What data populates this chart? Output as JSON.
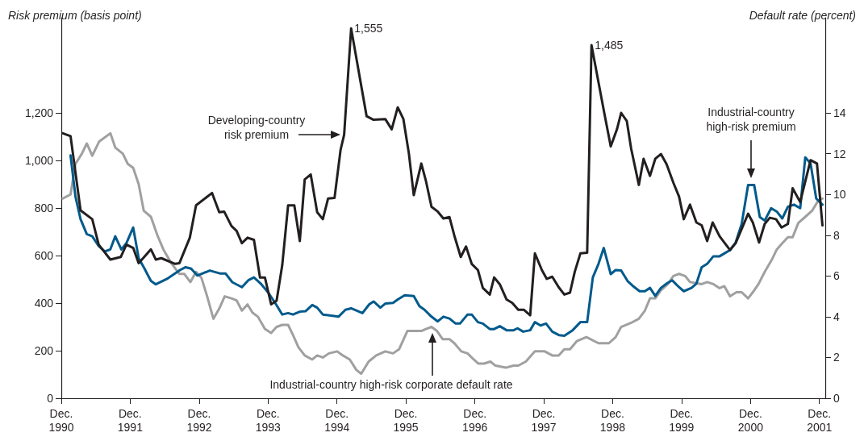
{
  "chart_data": {
    "type": "line",
    "ylabel": "Risk premium (basis point)",
    "y2label": "Default rate (percent)",
    "xlim": [
      "1990-12-01",
      "2002-01-01"
    ],
    "xticks": [
      {
        "value": "1990-12",
        "label": "Dec.\n1990"
      },
      {
        "value": "1991-12",
        "label": "Dec.\n1991"
      },
      {
        "value": "1992-12",
        "label": "Dec.\n1992"
      },
      {
        "value": "1993-12",
        "label": "Dec.\n1993"
      },
      {
        "value": "1994-12",
        "label": "Dec.\n1994"
      },
      {
        "value": "1995-12",
        "label": "Dec.\n1995"
      },
      {
        "value": "1996-12",
        "label": "Dec.\n1996"
      },
      {
        "value": "1997-12",
        "label": "Dec.\n1997"
      },
      {
        "value": "1998-12",
        "label": "Dec.\n1998"
      },
      {
        "value": "1999-12",
        "label": "Dec.\n1999"
      },
      {
        "value": "2000-12",
        "label": "Dec.\n2000"
      },
      {
        "value": "2001-12",
        "label": "Dec.\n2001"
      }
    ],
    "ylim": [
      0,
      1600
    ],
    "yticks": [
      0,
      200,
      400,
      600,
      800,
      {
        "value": 1000,
        "label": "1,000"
      },
      {
        "value": 1200,
        "label": "1,200"
      }
    ],
    "y2lim": [
      0,
      18.67
    ],
    "y2ticks": [
      0,
      2,
      4,
      6,
      8,
      10,
      12,
      14
    ],
    "grid": false,
    "marker": "none",
    "annotations": [
      {
        "text": "1,555",
        "x": "1995-02-14",
        "y": 1555
      },
      {
        "text": "1,485",
        "x": "1998-08-11",
        "y": 1485
      }
    ],
    "series": [
      {
        "name": "Developing-country risk premium",
        "color": "#231f20",
        "x": [
          "1990-12-09",
          "1991-01-19",
          "1991-03-13",
          "1991-05-14",
          "1991-06-17",
          "1991-08-18",
          "1991-10-12",
          "1991-11-11",
          "1991-12-17",
          "1992-01-15",
          "1992-03-20",
          "1992-04-15",
          "1992-05-14",
          "1992-07-26",
          "1992-08-18",
          "1992-10-12",
          "1992-11-14",
          "1993-02-07",
          "1993-03-17",
          "1993-04-12",
          "1993-05-21",
          "1993-06-17",
          "1993-07-15",
          "1993-08-14",
          "1993-09-17",
          "1993-10-19",
          "1993-11-14",
          "1993-12-17",
          "1994-01-15",
          "1994-02-14",
          "1994-03-17",
          "1994-04-19",
          "1994-05-18",
          "1994-06-13",
          "1994-07-15",
          "1994-08-18",
          "1994-09-17",
          "1994-10-15",
          "1994-11-18",
          "1994-12-20",
          "1995-01-08",
          "1995-02-14",
          "1995-05-07",
          "1995-06-13",
          "1995-08-14",
          "1995-09-17",
          "1995-10-19",
          "1995-11-18",
          "1995-12-17",
          "1996-01-12",
          "1996-02-21",
          "1996-03-17",
          "1996-04-15",
          "1996-05-18",
          "1996-06-17",
          "1996-07-19",
          "1996-08-14",
          "1996-09-17",
          "1996-10-15",
          "1996-11-14",
          "1996-12-17",
          "1997-01-12",
          "1997-02-18",
          "1997-03-13",
          "1997-04-12",
          "1997-05-18",
          "1997-06-17",
          "1997-07-19",
          "1997-08-18",
          "1997-09-20",
          "1997-10-15",
          "1997-11-21",
          "1997-12-17",
          "1998-01-15",
          "1998-02-18",
          "1998-03-20",
          "1998-04-19",
          "1998-05-14",
          "1998-06-13",
          "1998-07-19",
          "1998-08-11",
          "1998-10-19",
          "1998-11-21",
          "1998-12-24",
          "1999-01-15",
          "1999-02-14",
          "1999-03-09",
          "1999-04-19",
          "1999-05-14",
          "1999-06-17",
          "1999-07-15",
          "1999-08-14",
          "1999-09-13",
          "1999-10-19",
          "1999-11-18",
          "1999-12-13",
          "2000-01-15",
          "2000-02-18",
          "2000-03-17",
          "2000-04-15",
          "2000-05-14",
          "2000-06-20",
          "2000-08-14",
          "2000-09-13",
          "2000-11-18",
          "2000-12-13",
          "2001-01-15",
          "2001-02-14",
          "2001-03-13",
          "2001-04-15",
          "2001-05-14",
          "2001-06-17",
          "2001-07-12",
          "2001-08-21",
          "2001-10-15",
          "2001-11-18",
          "2001-12-17"
        ],
        "values": [
          1114,
          1102,
          790,
          753,
          646,
          583,
          594,
          646,
          632,
          568,
          626,
          583,
          589,
          565,
          568,
          675,
          811,
          863,
          782,
          785,
          724,
          704,
          652,
          675,
          666,
          508,
          508,
          395,
          410,
          560,
          811,
          811,
          661,
          920,
          941,
          782,
          753,
          840,
          842,
          1044,
          1108,
          1555,
          1186,
          1171,
          1174,
          1131,
          1223,
          1174,
          1030,
          854,
          987,
          912,
          805,
          785,
          756,
          762,
          684,
          594,
          638,
          565,
          539,
          464,
          436,
          508,
          479,
          415,
          401,
          372,
          372,
          349,
          609,
          539,
          502,
          511,
          467,
          436,
          444,
          531,
          609,
          612,
          1485,
          1194,
          1059,
          1131,
          1200,
          1166,
          1050,
          897,
          1007,
          935,
          1007,
          1027,
          984,
          906,
          848,
          753,
          814,
          739,
          727,
          661,
          739,
          681,
          623,
          652,
          776,
          739,
          655,
          733,
          759,
          753,
          718,
          733,
          883,
          825,
          1001,
          987,
          727
        ]
      },
      {
        "name": "Industrial-country high-risk premium",
        "color": "#005a8c",
        "x": [
          "1991-01-19",
          "1991-02-14",
          "1991-03-13",
          "1991-04-15",
          "1991-05-14",
          "1991-06-17",
          "1991-07-19",
          "1991-08-18",
          "1991-09-13",
          "1991-10-15",
          "1991-11-11",
          "1991-12-17",
          "1992-01-15",
          "1992-02-11",
          "1992-03-20",
          "1992-04-15",
          "1992-06-13",
          "1992-08-21",
          "1992-09-20",
          "1992-10-19",
          "1992-11-21",
          "1993-01-26",
          "1993-03-20",
          "1993-04-19",
          "1993-05-25",
          "1993-07-15",
          "1993-08-18",
          "1993-09-17",
          "1993-10-23",
          "1993-12-02",
          "1994-01-12",
          "1994-02-14",
          "1994-03-17",
          "1994-04-12",
          "1994-05-18",
          "1994-06-17",
          "1994-07-23",
          "1994-08-18",
          "1994-09-17",
          "1994-10-15",
          "1994-12-09",
          "1995-01-15",
          "1995-02-14",
          "1995-04-15",
          "1995-05-21",
          "1995-06-13",
          "1995-07-19",
          "1995-08-14",
          "1995-09-24",
          "1995-10-19",
          "1995-11-25",
          "1996-01-12",
          "1996-02-11",
          "1996-03-09",
          "1996-04-15",
          "1996-05-18",
          "1996-06-17",
          "1996-07-19",
          "1996-08-21",
          "1996-09-13",
          "1996-10-23",
          "1996-11-14",
          "1996-12-17",
          "1997-01-12",
          "1997-02-18",
          "1997-03-13",
          "1997-04-12",
          "1997-05-18",
          "1997-06-24",
          "1997-07-15",
          "1997-08-14",
          "1997-09-20",
          "1997-10-15",
          "1997-11-14",
          "1997-12-13",
          "1998-01-15",
          "1998-02-21",
          "1998-03-20",
          "1998-05-03",
          "1998-06-13",
          "1998-07-19",
          "1998-08-18",
          "1998-09-17",
          "1998-10-15",
          "1998-11-21",
          "1998-12-17",
          "1999-01-15",
          "1999-02-18",
          "1999-03-17",
          "1999-04-23",
          "1999-05-21",
          "1999-06-17",
          "1999-07-15",
          "1999-08-14",
          "1999-09-13",
          "1999-10-12",
          "1999-11-18",
          "1999-12-13",
          "2000-01-23",
          "2000-02-18",
          "2000-03-17",
          "2000-04-15",
          "2000-05-18",
          "2000-06-20",
          "2000-07-15",
          "2000-08-14",
          "2000-09-13",
          "2000-10-15",
          "2000-11-18",
          "2000-12-20",
          "2001-01-19",
          "2001-02-14",
          "2001-03-20",
          "2001-04-19",
          "2001-05-18",
          "2001-06-17",
          "2001-07-19",
          "2001-08-21",
          "2001-09-17",
          "2001-10-15",
          "2001-11-14",
          "2001-12-17"
        ],
        "values": [
          1021,
          848,
          753,
          690,
          681,
          640,
          617,
          626,
          681,
          626,
          652,
          718,
          589,
          551,
          493,
          479,
          502,
          539,
          551,
          545,
          516,
          537,
          525,
          525,
          488,
          467,
          496,
          508,
          482,
          444,
          395,
          352,
          358,
          352,
          364,
          366,
          392,
          381,
          352,
          349,
          343,
          372,
          378,
          358,
          395,
          407,
          381,
          398,
          401,
          415,
          433,
          430,
          387,
          372,
          343,
          323,
          343,
          335,
          314,
          314,
          352,
          352,
          320,
          314,
          291,
          291,
          303,
          286,
          286,
          294,
          280,
          286,
          320,
          306,
          314,
          280,
          265,
          263,
          286,
          320,
          320,
          508,
          565,
          632,
          522,
          539,
          537,
          493,
          473,
          450,
          450,
          464,
          430,
          464,
          482,
          496,
          467,
          450,
          464,
          482,
          551,
          565,
          597,
          597,
          609,
          623,
          655,
          733,
          897,
          897,
          762,
          747,
          799,
          785,
          756,
          805,
          814,
          799,
          1013,
          987,
          840,
          814
        ]
      },
      {
        "name": "Industrial-country high-risk corporate default rate",
        "color": "#a0a0a0",
        "axis": "y2",
        "x": [
          "1990-12-09",
          "1991-01-19",
          "1991-02-14",
          "1991-03-20",
          "1991-04-15",
          "1991-05-14",
          "1991-06-20",
          "1991-08-18",
          "1991-09-13",
          "1991-10-23",
          "1991-11-18",
          "1991-12-17",
          "1992-01-15",
          "1992-02-11",
          "1992-03-20",
          "1992-04-23",
          "1992-05-25",
          "1992-07-08",
          "1992-08-18",
          "1992-09-13",
          "1992-10-15",
          "1992-11-14",
          "1992-12-13",
          "1993-01-12",
          "1993-02-14",
          "1993-03-17",
          "1993-04-15",
          "1993-05-21",
          "1993-06-17",
          "1993-07-15",
          "1993-08-14",
          "1993-09-09",
          "1993-10-08",
          "1993-11-14",
          "1993-12-17",
          "1994-01-15",
          "1994-02-14",
          "1994-03-17",
          "1994-04-12",
          "1994-05-11",
          "1994-06-13",
          "1994-07-23",
          "1994-08-18",
          "1994-09-17",
          "1994-10-19",
          "1994-12-02",
          "1995-01-01",
          "1995-02-07",
          "1995-03-13",
          "1995-04-08",
          "1995-05-18",
          "1995-06-27",
          "1995-08-14",
          "1995-09-24",
          "1995-10-26",
          "1995-12-09",
          "1996-01-12",
          "1996-02-21",
          "1996-03-17",
          "1996-04-15",
          "1996-05-14",
          "1996-06-13",
          "1996-07-19",
          "1996-08-14",
          "1996-09-20",
          "1996-10-23",
          "1996-11-25",
          "1996-12-20",
          "1997-01-19",
          "1997-02-21",
          "1997-03-20",
          "1997-05-14",
          "1997-06-24",
          "1997-07-19",
          "1997-08-28",
          "1997-10-15",
          "1997-12-06",
          "1998-01-15",
          "1998-02-18",
          "1998-03-20",
          "1998-04-19",
          "1998-05-25",
          "1998-07-15",
          "1998-09-17",
          "1998-11-11",
          "1998-12-17",
          "1999-01-15",
          "1999-03-09",
          "1999-04-19",
          "1999-05-21",
          "1999-06-17",
          "1999-07-15",
          "1999-08-14",
          "1999-09-20",
          "1999-10-19",
          "1999-11-18",
          "1999-12-20",
          "2000-01-15",
          "2000-03-17",
          "2000-04-15",
          "2000-05-18",
          "2000-06-20",
          "2000-07-15",
          "2000-08-14",
          "2000-09-17",
          "2000-10-15",
          "2000-11-18",
          "2000-12-13",
          "2001-01-12",
          "2001-02-14",
          "2001-03-24",
          "2001-04-19",
          "2001-05-18",
          "2001-06-17",
          "2001-07-12",
          "2001-08-11",
          "2001-09-17",
          "2001-10-23",
          "2001-11-25",
          "2001-12-17"
        ],
        "values": [
          9.8,
          10.0,
          11.5,
          12.0,
          12.5,
          11.9,
          12.6,
          13.0,
          12.3,
          12.0,
          11.5,
          11.3,
          10.5,
          9.2,
          8.9,
          8.0,
          7.3,
          6.6,
          6.1,
          6.1,
          5.7,
          6.2,
          5.9,
          5.0,
          3.9,
          4.4,
          5.0,
          4.9,
          4.8,
          4.3,
          4.6,
          4.2,
          4.0,
          3.4,
          3.2,
          3.5,
          3.6,
          3.6,
          3.1,
          2.5,
          2.1,
          1.9,
          2.1,
          2.0,
          2.2,
          2.3,
          2.1,
          1.9,
          1.4,
          1.2,
          1.8,
          2.1,
          2.3,
          2.2,
          2.4,
          3.3,
          3.3,
          3.3,
          3.4,
          3.5,
          3.3,
          2.9,
          2.9,
          2.7,
          2.3,
          2.2,
          1.9,
          1.7,
          1.7,
          1.8,
          1.6,
          1.5,
          1.6,
          1.6,
          1.8,
          2.3,
          2.3,
          2.1,
          2.1,
          2.4,
          2.4,
          2.8,
          3.0,
          2.7,
          2.7,
          3.0,
          3.5,
          3.7,
          3.9,
          4.3,
          4.9,
          4.9,
          5.3,
          5.6,
          6.0,
          6.1,
          6.0,
          5.7,
          5.6,
          5.7,
          5.6,
          5.4,
          5.5,
          5.0,
          5.2,
          5.2,
          4.9,
          5.2,
          5.6,
          6.2,
          6.8,
          7.3,
          7.6,
          7.9,
          7.9,
          8.6,
          8.9,
          9.2,
          9.7,
          9.8
        ]
      }
    ]
  }
}
